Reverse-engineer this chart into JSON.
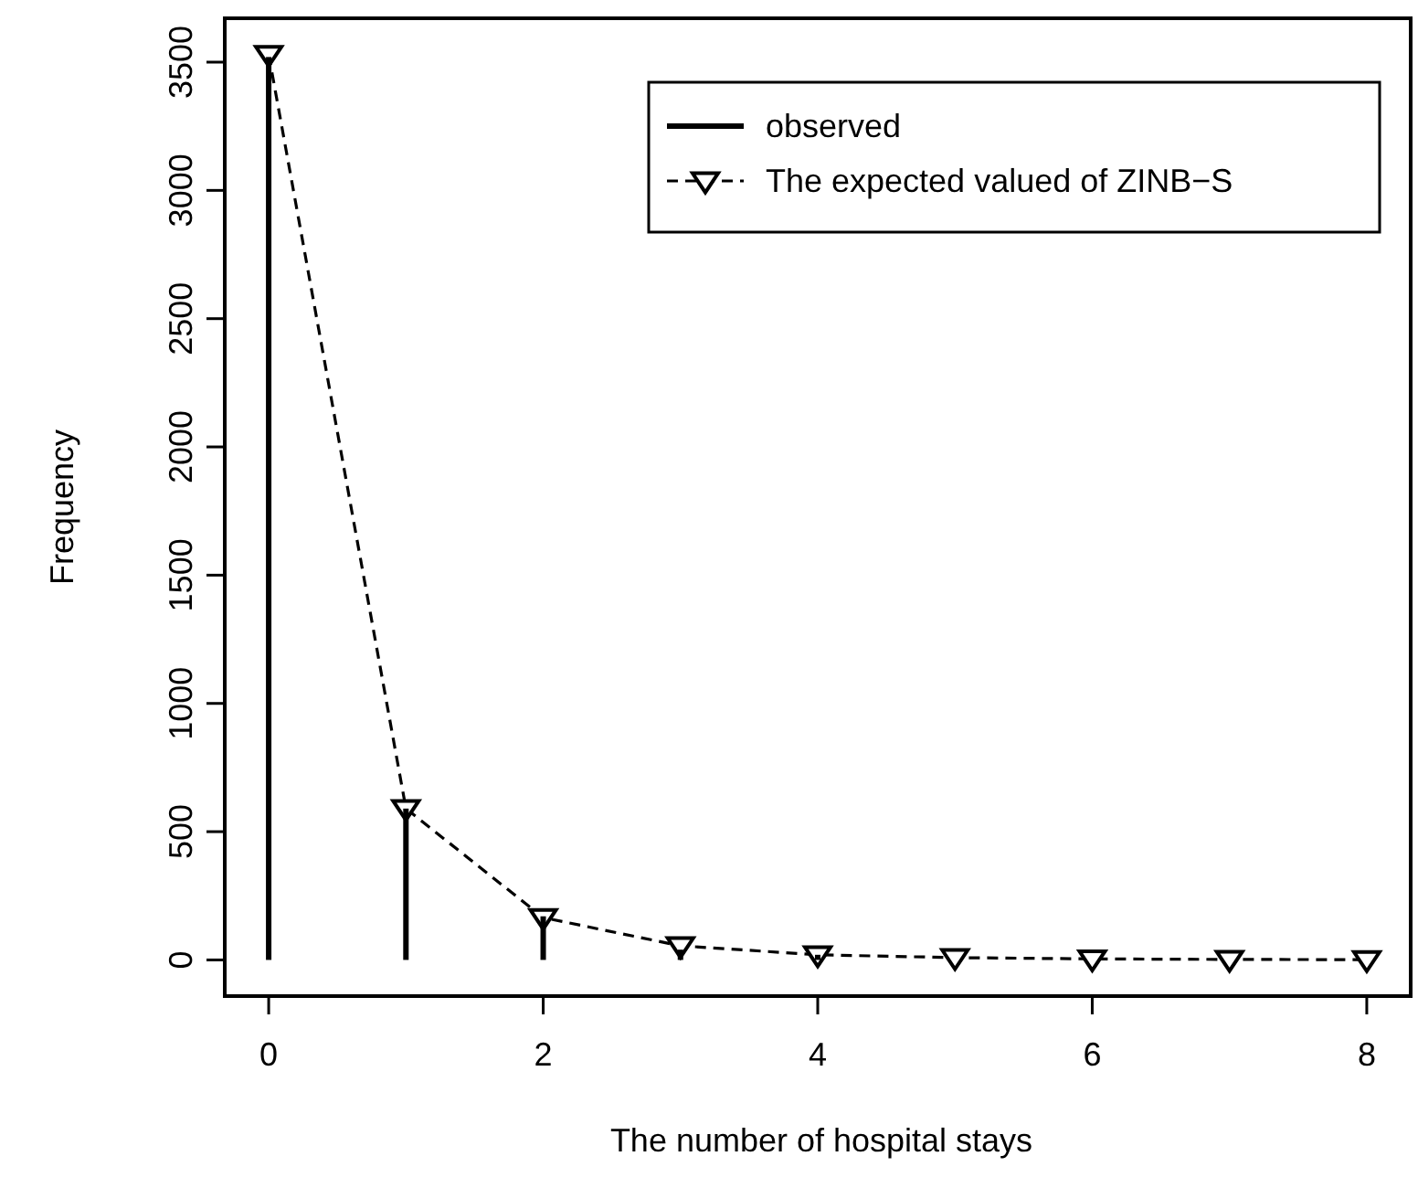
{
  "chart_data": {
    "type": "line",
    "xlabel": "The number of hospital stays",
    "ylabel": "Frequency",
    "x": [
      0,
      1,
      2,
      3,
      4,
      5,
      6,
      7,
      8
    ],
    "xlim": [
      -0.32,
      8.32
    ],
    "xticks": [
      0,
      2,
      4,
      6,
      8
    ],
    "ylim": [
      -141,
      3671
    ],
    "yticks": [
      0,
      500,
      1000,
      1500,
      2000,
      2500,
      3000,
      3500
    ],
    "legend": "top right",
    "grid": false,
    "series": [
      {
        "name": "observed",
        "type": "bar",
        "color": "#000000",
        "values": [
          3520,
          590,
          170,
          40,
          20,
          null,
          null,
          null,
          null
        ]
      },
      {
        "name": "The expected valued of ZINB−S",
        "color": "#000000",
        "line_style": "dashed",
        "marker": "triangle",
        "values": [
          3530,
          590,
          165,
          55,
          20,
          9,
          4,
          2,
          1
        ]
      }
    ]
  }
}
